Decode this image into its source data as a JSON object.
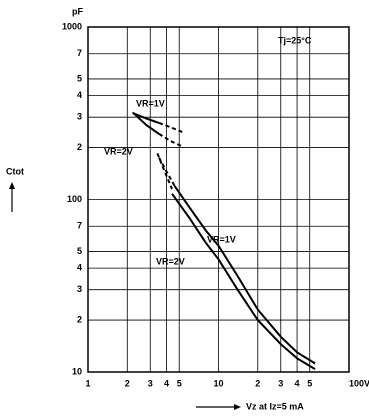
{
  "chart_data": {
    "type": "line",
    "log_x": true,
    "log_y": true,
    "grid": true,
    "y_unit": "pF",
    "ylabel": "Ctot",
    "xlabel": "Vz at Iz=5 mA",
    "annotation": "Tj=25°C",
    "xlim": [
      1,
      100
    ],
    "ylim": [
      10,
      1000
    ],
    "xticks": [
      1,
      2,
      3,
      4,
      5,
      10,
      {
        "value": 20,
        "label": "2"
      },
      {
        "value": 30,
        "label": "3"
      },
      {
        "value": 40,
        "label": "4"
      },
      {
        "value": 50,
        "label": "5"
      },
      {
        "value": 100,
        "label": "100V"
      }
    ],
    "yticks": [
      10,
      {
        "value": 20,
        "label": "2"
      },
      {
        "value": 30,
        "label": "3"
      },
      {
        "value": 40,
        "label": "4"
      },
      {
        "value": 50,
        "label": "5"
      },
      {
        "value": 70,
        "label": "7"
      },
      100,
      {
        "value": 200,
        "label": "2"
      },
      {
        "value": 300,
        "label": "3"
      },
      {
        "value": 400,
        "label": "4"
      },
      {
        "value": 500,
        "label": "5"
      },
      {
        "value": 700,
        "label": "7"
      },
      1000
    ],
    "color": "#000000",
    "series": [
      {
        "name": "VR=1V",
        "segments": [
          {
            "style": "solid",
            "x": [
              2.2,
              2.8,
              3.5
            ],
            "values": [
              317,
              295,
              278
            ]
          },
          {
            "style": "dashed",
            "x": [
              3.5,
              4.3,
              5.3
            ],
            "values": [
              278,
              262,
              246
            ]
          }
        ]
      },
      {
        "name": "VR=2V",
        "segments": [
          {
            "style": "solid",
            "x": [
              2.2,
              2.8,
              3.5
            ],
            "values": [
              320,
              270,
              240
            ]
          },
          {
            "style": "dashed",
            "x": [
              3.5,
              4.3,
              5.3
            ],
            "values": [
              240,
              218,
              203
            ]
          }
        ]
      },
      {
        "name": "VR=1V",
        "segments": [
          {
            "style": "dashed",
            "x": [
              3.5,
              4.0,
              4.6
            ],
            "values": [
              175,
              145,
              120
            ]
          },
          {
            "style": "solid",
            "x": [
              4.6,
              6,
              8,
              10,
              14,
              20,
              30,
              40,
              55
            ],
            "values": [
              120,
              90,
              66,
              54,
              36,
              23,
              16,
              13,
              11.2
            ]
          }
        ]
      },
      {
        "name": "VR=2V",
        "segments": [
          {
            "style": "dashed",
            "x": [
              3.4,
              3.8,
              4.4
            ],
            "values": [
              185,
              150,
              115
            ]
          },
          {
            "style": "solid",
            "x": [
              4.4,
              6,
              8,
              10,
              14,
              20,
              30,
              40,
              55
            ],
            "values": [
              108,
              78,
              56,
              45,
              30,
              20,
              14.5,
              12,
              10.4
            ]
          }
        ]
      }
    ]
  }
}
